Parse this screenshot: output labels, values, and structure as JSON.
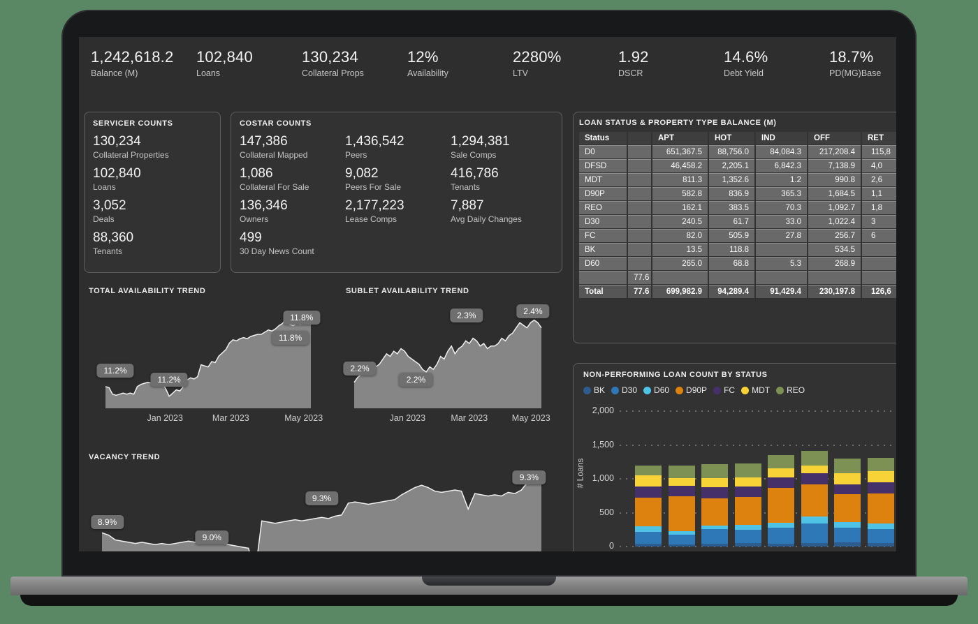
{
  "kpis": [
    {
      "value": "1,242,618.2",
      "label": "Balance (M)"
    },
    {
      "value": "102,840",
      "label": "Loans"
    },
    {
      "value": "130,234",
      "label": "Collateral Props"
    },
    {
      "value": "12%",
      "label": "Availability"
    },
    {
      "value": "2280%",
      "label": "LTV"
    },
    {
      "value": "1.92",
      "label": "DSCR"
    },
    {
      "value": "14.6%",
      "label": "Debt Yield"
    },
    {
      "value": "18.7%",
      "label": "PD(MG)Base"
    }
  ],
  "servicer_panel": {
    "title": "SERVICER COUNTS",
    "items": [
      {
        "value": "130,234",
        "label": "Collateral Properties"
      },
      {
        "value": "102,840",
        "label": "Loans"
      },
      {
        "value": "3,052",
        "label": "Deals"
      },
      {
        "value": "88,360",
        "label": "Tenants"
      }
    ]
  },
  "costar_panel": {
    "title": "COSTAR COUNTS",
    "items": [
      {
        "value": "147,386",
        "label": "Collateral Mapped"
      },
      {
        "value": "1,436,542",
        "label": "Peers"
      },
      {
        "value": "1,294,381",
        "label": "Sale Comps"
      },
      {
        "value": "1,086",
        "label": "Collateral For Sale"
      },
      {
        "value": "9,082",
        "label": "Peers For Sale"
      },
      {
        "value": "416,786",
        "label": "Tenants"
      },
      {
        "value": "136,346",
        "label": "Owners"
      },
      {
        "value": "2,177,223",
        "label": "Lease Comps"
      },
      {
        "value": "7,887",
        "label": "Avg Daily Changes"
      },
      {
        "value": "499",
        "label": "30 Day News Count"
      }
    ]
  },
  "loan_table": {
    "title": "LOAN STATUS & PROPERTY TYPE BALANCE (M)",
    "columns": [
      "Status",
      "",
      "APT",
      "HOT",
      "IND",
      "OFF",
      "RET"
    ],
    "rows": [
      [
        "D0",
        "",
        "651,367.5",
        "88,756.0",
        "84,084.3",
        "217,208.4",
        "115,8"
      ],
      [
        "DFSD",
        "",
        "46,458.2",
        "2,205.1",
        "6,842.3",
        "7,138.9",
        "4,0"
      ],
      [
        "MDT",
        "",
        "811.3",
        "1,352.6",
        "1.2",
        "990.8",
        "2,6"
      ],
      [
        "D90P",
        "",
        "582.8",
        "836.9",
        "365.3",
        "1,684.5",
        "1,1"
      ],
      [
        "REO",
        "",
        "162.1",
        "383.5",
        "70.3",
        "1,092.7",
        "1,8"
      ],
      [
        "D30",
        "",
        "240.5",
        "61.7",
        "33.0",
        "1,022.4",
        "3"
      ],
      [
        "FC",
        "",
        "82.0",
        "505.9",
        "27.8",
        "256.7",
        "6"
      ],
      [
        "BK",
        "",
        "13.5",
        "118.8",
        "",
        "534.5",
        ""
      ],
      [
        "D60",
        "",
        "265.0",
        "68.8",
        "5.3",
        "268.9",
        ""
      ],
      [
        "",
        "77.6",
        "",
        "",
        "",
        "",
        ""
      ]
    ],
    "total": [
      "Total",
      "77.6",
      "699,982.9",
      "94,289.4",
      "91,429.4",
      "230,197.8",
      "126,6"
    ]
  },
  "chart_data": [
    {
      "type": "area",
      "title": "TOTAL AVAILABILITY TREND",
      "unit": "%",
      "ylim": [
        11.02,
        11.95
      ],
      "x_ticks": [
        {
          "label": "Jan 2023",
          "x": 0.29
        },
        {
          "label": "Mar 2023",
          "x": 0.61
        },
        {
          "label": "May 2023",
          "x": 0.965
        }
      ],
      "callouts": [
        {
          "label": "11.2%",
          "x": 0.048,
          "y": 0.63
        },
        {
          "label": "11.2%",
          "x": 0.31,
          "y": 0.72
        },
        {
          "label": "11.8%",
          "x": 0.955,
          "y": 0.1
        },
        {
          "label": "11.8%",
          "x": 0.9,
          "y": 0.3
        }
      ],
      "series": [
        11.22,
        11.21,
        11.15,
        11.14,
        11.15,
        11.16,
        11.15,
        11.16,
        11.15,
        11.22,
        11.24,
        11.25,
        11.26,
        11.25,
        11.26,
        11.24,
        11.25,
        11.2,
        11.13,
        11.16,
        11.19,
        11.18,
        11.22,
        11.28,
        11.3,
        11.29,
        11.31,
        11.42,
        11.41,
        11.4,
        11.45,
        11.44,
        11.5,
        11.53,
        11.56,
        11.62,
        11.65,
        11.64,
        11.66,
        11.67,
        11.66,
        11.68,
        11.69,
        11.7,
        11.7,
        11.72,
        11.74,
        11.73,
        11.75,
        11.78,
        11.8,
        11.85,
        11.79,
        11.78,
        11.8,
        11.79,
        11.8,
        11.8,
        11.81
      ]
    },
    {
      "type": "area",
      "title": "SUBLET AVAILABILITY TREND",
      "unit": "%",
      "ylim": [
        2.07,
        2.46
      ],
      "x_ticks": [
        {
          "label": "Jan 2023",
          "x": 0.285
        },
        {
          "label": "Mar 2023",
          "x": 0.615
        },
        {
          "label": "May 2023",
          "x": 0.945
        }
      ],
      "callouts": [
        {
          "label": "2.2%",
          "x": 0.03,
          "y": 0.61
        },
        {
          "label": "2.2%",
          "x": 0.33,
          "y": 0.72
        },
        {
          "label": "2.3%",
          "x": 0.6,
          "y": 0.08
        },
        {
          "label": "2.4%",
          "x": 0.955,
          "y": 0.04
        }
      ],
      "series": [
        2.17,
        2.19,
        2.2,
        2.21,
        2.21,
        2.22,
        2.23,
        2.24,
        2.26,
        2.28,
        2.27,
        2.29,
        2.28,
        2.3,
        2.29,
        2.27,
        2.26,
        2.25,
        2.24,
        2.22,
        2.21,
        2.23,
        2.22,
        2.24,
        2.27,
        2.26,
        2.29,
        2.31,
        2.28,
        2.3,
        2.31,
        2.33,
        2.32,
        2.34,
        2.33,
        2.31,
        2.32,
        2.3,
        2.31,
        2.31,
        2.32,
        2.34,
        2.33,
        2.35,
        2.36,
        2.38,
        2.4,
        2.39,
        2.38,
        2.4,
        2.41,
        2.4,
        2.38
      ]
    },
    {
      "type": "area",
      "title": "VACANCY TREND",
      "unit": "%",
      "ylim": [
        8.52,
        9.46
      ],
      "x_ticks": [],
      "callouts": [
        {
          "label": "8.9%",
          "x": 0.012,
          "y": 0.5
        },
        {
          "label": "9.0%",
          "x": 0.25,
          "y": 0.64
        },
        {
          "label": "9.3%",
          "x": 0.5,
          "y": 0.29
        },
        {
          "label": "9.3%",
          "x": 0.972,
          "y": 0.1
        }
      ],
      "series": [
        8.9,
        8.88,
        8.84,
        8.83,
        8.82,
        8.81,
        8.82,
        8.81,
        8.8,
        8.81,
        8.8,
        8.81,
        8.82,
        8.83,
        8.82,
        8.83,
        8.84,
        8.83,
        8.82,
        8.8,
        8.79,
        8.78,
        8.77,
        8.56,
        9.0,
        8.99,
        8.98,
        8.99,
        9.0,
        9.01,
        9.0,
        9.01,
        9.02,
        9.03,
        9.02,
        9.04,
        9.05,
        9.15,
        9.16,
        9.15,
        9.14,
        9.15,
        9.16,
        9.17,
        9.18,
        9.22,
        9.25,
        9.28,
        9.3,
        9.28,
        9.25,
        9.24,
        9.25,
        9.26,
        9.25,
        9.1,
        9.23,
        9.22,
        9.21,
        9.22,
        9.21,
        9.24,
        9.23,
        9.26,
        9.33,
        9.32,
        9.32
      ]
    },
    {
      "type": "stacked-bar",
      "title": "NON-PERFORMING LOAN COUNT BY STATUS",
      "ylabel": "# Loans",
      "ylim": [
        0,
        2000
      ],
      "yticks": [
        {
          "v": 2000,
          "label": "2,000"
        },
        {
          "v": 1500,
          "label": "1,500"
        },
        {
          "v": 1000,
          "label": "1,000"
        },
        {
          "v": 500,
          "label": "500"
        },
        {
          "v": 0,
          "label": "0"
        }
      ],
      "legend": [
        {
          "name": "BK",
          "color": "#2d5c8f"
        },
        {
          "name": "D30",
          "color": "#2e78b8"
        },
        {
          "name": "D60",
          "color": "#4ec3e6"
        },
        {
          "name": "D90P",
          "color": "#dd820e"
        },
        {
          "name": "FC",
          "color": "#46306a"
        },
        {
          "name": "MDT",
          "color": "#f8d337"
        },
        {
          "name": "REO",
          "color": "#7c9153"
        }
      ],
      "bars": [
        [
          40,
          175,
          85,
          420,
          170,
          160,
          150
        ],
        [
          35,
          140,
          55,
          510,
          160,
          110,
          190
        ],
        [
          45,
          210,
          55,
          400,
          170,
          130,
          205
        ],
        [
          50,
          195,
          70,
          420,
          155,
          135,
          200
        ],
        [
          45,
          235,
          75,
          510,
          160,
          130,
          195
        ],
        [
          55,
          290,
          95,
          480,
          160,
          120,
          210
        ],
        [
          60,
          215,
          85,
          415,
          145,
          160,
          220
        ],
        [
          55,
          205,
          85,
          440,
          165,
          165,
          195
        ]
      ]
    }
  ]
}
